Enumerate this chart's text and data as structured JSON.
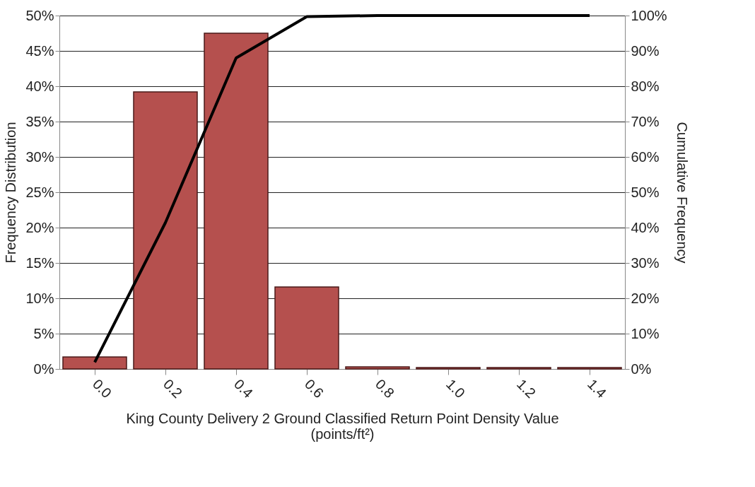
{
  "chart_data": {
    "type": "bar",
    "xlabel": "King County Delivery 2 Ground Classified Return Point Density Value\n(points/ft²)",
    "ylabel": "Frequency Distribution",
    "y2label": "Cumulative Frequency",
    "categories": [
      "0.0",
      "0.2",
      "0.4",
      "0.6",
      "0.8",
      "1.0",
      "1.2",
      "1.4"
    ],
    "series": [
      {
        "type": "bar",
        "color": "#b5504e",
        "values": [
          1.7,
          39.2,
          47.5,
          11.6,
          0.3,
          0.2,
          0.2,
          0.2
        ]
      },
      {
        "type": "line",
        "axis": "y2",
        "color": "#000000",
        "values": [
          1.9,
          41.4,
          88,
          99.7,
          100,
          100,
          100,
          100
        ]
      }
    ],
    "ylim": [
      0,
      50
    ],
    "yticks": [
      {
        "value": 0,
        "label": "0%"
      },
      {
        "value": 5,
        "label": "5%"
      },
      {
        "value": 10,
        "label": "10%"
      },
      {
        "value": 15,
        "label": "15%"
      },
      {
        "value": 20,
        "label": "20%"
      },
      {
        "value": 25,
        "label": "25%"
      },
      {
        "value": 30,
        "label": "30%"
      },
      {
        "value": 35,
        "label": "35%"
      },
      {
        "value": 40,
        "label": "40%"
      },
      {
        "value": 45,
        "label": "45%"
      },
      {
        "value": 50,
        "label": "50%"
      }
    ],
    "y2lim": [
      0,
      100
    ],
    "y2ticks": [
      {
        "value": 0,
        "label": "0%"
      },
      {
        "value": 10,
        "label": "10%"
      },
      {
        "value": 20,
        "label": "20%"
      },
      {
        "value": 30,
        "label": "30%"
      },
      {
        "value": 40,
        "label": "40%"
      },
      {
        "value": 50,
        "label": "50%"
      },
      {
        "value": 60,
        "label": "60%"
      },
      {
        "value": 70,
        "label": "70%"
      },
      {
        "value": 80,
        "label": "80%"
      },
      {
        "value": 90,
        "label": "90%"
      },
      {
        "value": 100,
        "label": "100%"
      }
    ],
    "grid": "y",
    "marker": "none",
    "line_style": "solid"
  }
}
